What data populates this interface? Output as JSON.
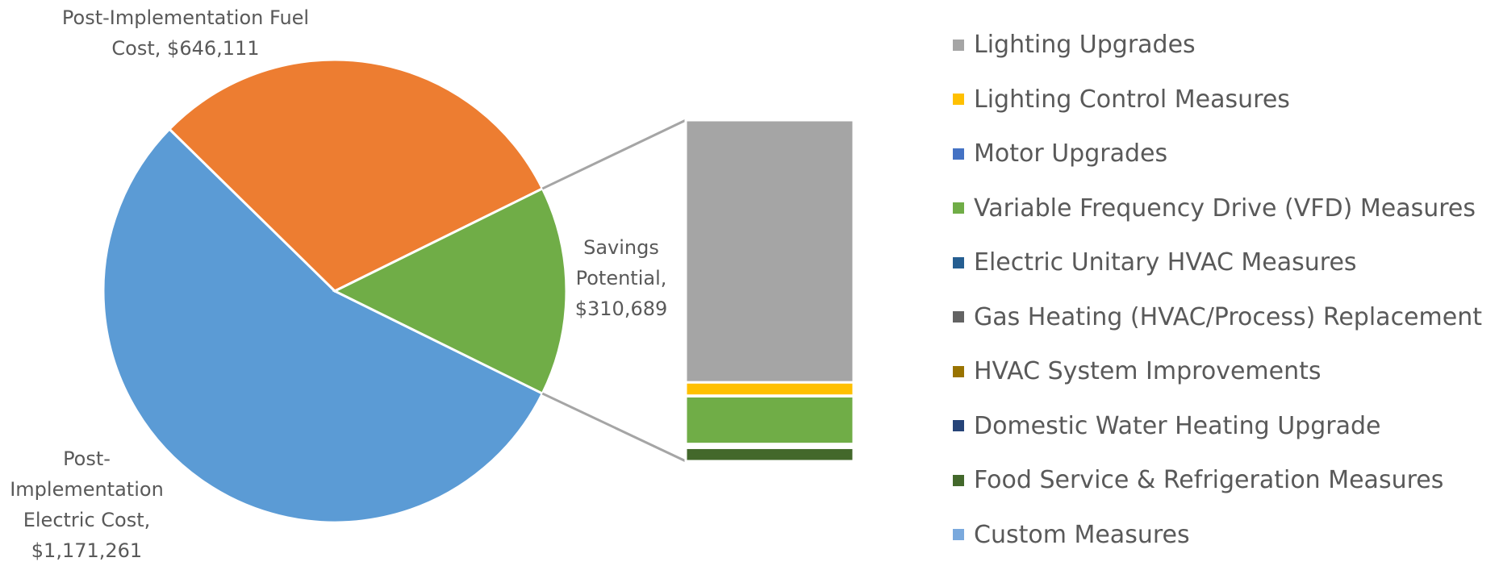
{
  "chart_data": {
    "type": "bar-of-pie",
    "categories": [
      "Post-Implementation Electric Cost",
      "Post-Implementation Fuel Cost",
      "Savings Potential"
    ],
    "values": [
      1171261,
      646111,
      310689
    ],
    "value_labels": [
      "$1,171,261",
      "$646,111",
      "$310,689"
    ],
    "colors": [
      "#5b9bd5",
      "#ed7d31",
      "#70ad47"
    ],
    "breakdown": {
      "categories": [
        "Lighting Upgrades",
        "Lighting Control Measures",
        "Motor Upgrades",
        "Variable Frequency Drive (VFD) Measures",
        "Electric Unitary HVAC Measures",
        "Gas Heating (HVAC/Process) Replacement",
        "HVAC System Improvements",
        "Domestic Water Heating Upgrade",
        "Food Service & Refrigeration Measures",
        "Custom Measures"
      ],
      "values": [
        236000,
        12000,
        500,
        43000,
        1700,
        0,
        0,
        1700,
        12000,
        0
      ],
      "colors": [
        "#a5a5a5",
        "#ffc000",
        "#4472c4",
        "#70ad47",
        "#255e91",
        "#636363",
        "#997300",
        "#264478",
        "#43682b",
        "#7aa9dd"
      ]
    }
  }
}
